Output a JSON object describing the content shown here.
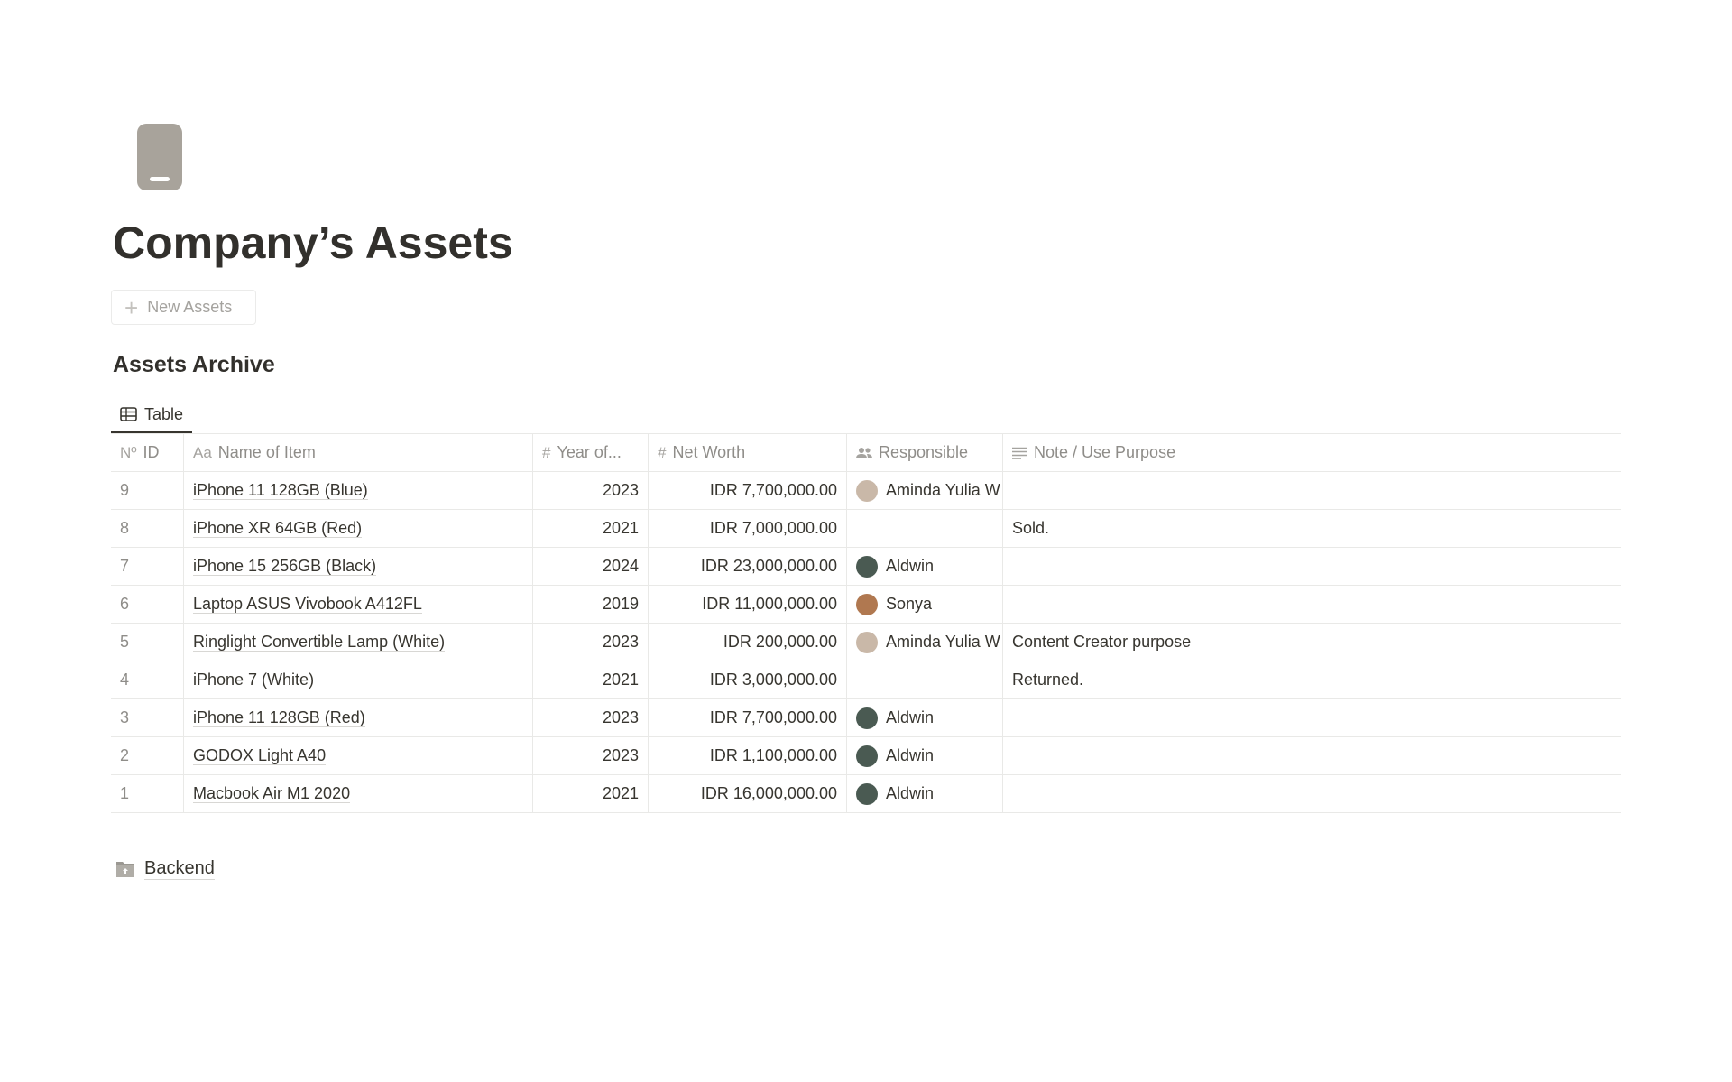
{
  "page": {
    "title": "Company’s Assets",
    "icon": "phone-icon",
    "icon_color": "#a8a39b"
  },
  "new_button": {
    "label": "New Assets"
  },
  "section": {
    "title": "Assets Archive"
  },
  "view_tab": {
    "label": "Table",
    "icon": "table-icon"
  },
  "table": {
    "columns": [
      {
        "icon": "Nº",
        "label": "ID"
      },
      {
        "icon": "Aa",
        "label": "Name of Item"
      },
      {
        "icon": "#",
        "label": "Year of..."
      },
      {
        "icon": "#",
        "label": "Net Worth"
      },
      {
        "icon": "people-icon",
        "label": "Responsible"
      },
      {
        "icon": "text-lines-icon",
        "label": "Note / Use Purpose"
      }
    ],
    "rows": [
      {
        "id": "9",
        "name": "iPhone 11 128GB (Blue)",
        "year": "2023",
        "net": "IDR 7,700,000.00",
        "resp": "Aminda Yulia W",
        "note": ""
      },
      {
        "id": "8",
        "name": "iPhone XR 64GB (Red)",
        "year": "2021",
        "net": "IDR 7,000,000.00",
        "resp": "",
        "note": "Sold."
      },
      {
        "id": "7",
        "name": "iPhone 15 256GB (Black)",
        "year": "2024",
        "net": "IDR 23,000,000.00",
        "resp": "Aldwin",
        "note": ""
      },
      {
        "id": "6",
        "name": "Laptop ASUS Vivobook A412FL",
        "year": "2019",
        "net": "IDR 11,000,000.00",
        "resp": "Sonya",
        "note": ""
      },
      {
        "id": "5",
        "name": "Ringlight Convertible Lamp (White)",
        "year": "2023",
        "net": "IDR 200,000.00",
        "resp": "Aminda Yulia W",
        "note": "Content Creator purpose"
      },
      {
        "id": "4",
        "name": "iPhone 7 (White)",
        "year": "2021",
        "net": "IDR 3,000,000.00",
        "resp": "",
        "note": "Returned."
      },
      {
        "id": "3",
        "name": "iPhone 11 128GB (Red)",
        "year": "2023",
        "net": "IDR 7,700,000.00",
        "resp": "Aldwin",
        "note": ""
      },
      {
        "id": "2",
        "name": "GODOX Light A40",
        "year": "2023",
        "net": "IDR 1,100,000.00",
        "resp": "Aldwin",
        "note": ""
      },
      {
        "id": "1",
        "name": "Macbook Air M1 2020",
        "year": "2021",
        "net": "IDR 16,000,000.00",
        "resp": "Aldwin",
        "note": ""
      }
    ]
  },
  "avatar_colors": {
    "Aminda Yulia W": "#c9b8a8",
    "Aldwin": "#4a5a52",
    "Sonya": "#b07850"
  },
  "backend": {
    "label": "Backend",
    "icon": "folder-icon"
  }
}
